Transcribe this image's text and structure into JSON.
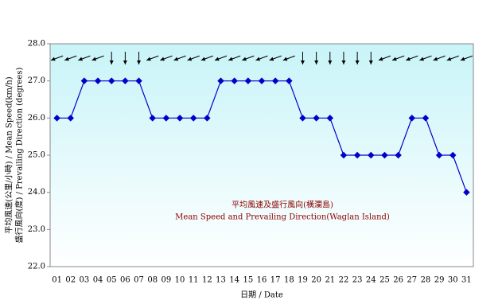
{
  "chart_data": {
    "type": "line",
    "title": "平均風速及盛行風向(橫瀾島)",
    "subtitle": "Mean Speed and Prevailing Direction(Waglan Island)",
    "x_label": "日期 / Date",
    "y_label": [
      "平均風速(公里/小時) / Mean Speed(km/h)",
      "盛行風向(度) / Prevailing Direction (degrees)"
    ],
    "categories": [
      "01",
      "02",
      "03",
      "04",
      "05",
      "06",
      "07",
      "08",
      "09",
      "10",
      "11",
      "12",
      "13",
      "14",
      "15",
      "16",
      "17",
      "18",
      "19",
      "20",
      "21",
      "22",
      "23",
      "24",
      "25",
      "26",
      "27",
      "28",
      "29",
      "30",
      "31"
    ],
    "series": [
      {
        "name": "Mean Speed",
        "color": "#0000cc",
        "values": [
          26,
          26,
          27,
          27,
          27,
          27,
          27,
          26,
          26,
          26,
          26,
          26,
          27,
          27,
          27,
          27,
          27,
          27,
          26,
          26,
          26,
          25,
          25,
          25,
          25,
          25,
          26,
          26,
          25,
          25,
          24
        ]
      }
    ],
    "wind_direction": [
      70,
      70,
      70,
      70,
      360,
      360,
      360,
      70,
      70,
      70,
      70,
      70,
      70,
      70,
      70,
      70,
      70,
      70,
      360,
      360,
      360,
      360,
      360,
      360,
      70,
      70,
      70,
      70,
      70,
      70,
      70
    ],
    "ylim": [
      22,
      28
    ],
    "yticks": [
      {
        "value": 22,
        "label": "22.0"
      },
      {
        "value": 23,
        "label": "23.0"
      },
      {
        "value": 24,
        "label": "24.0"
      },
      {
        "value": 25,
        "label": "25.0"
      },
      {
        "value": 26,
        "label": "26.0"
      },
      {
        "value": 27,
        "label": "27.0"
      },
      {
        "value": 28,
        "label": "28.0"
      }
    ]
  }
}
